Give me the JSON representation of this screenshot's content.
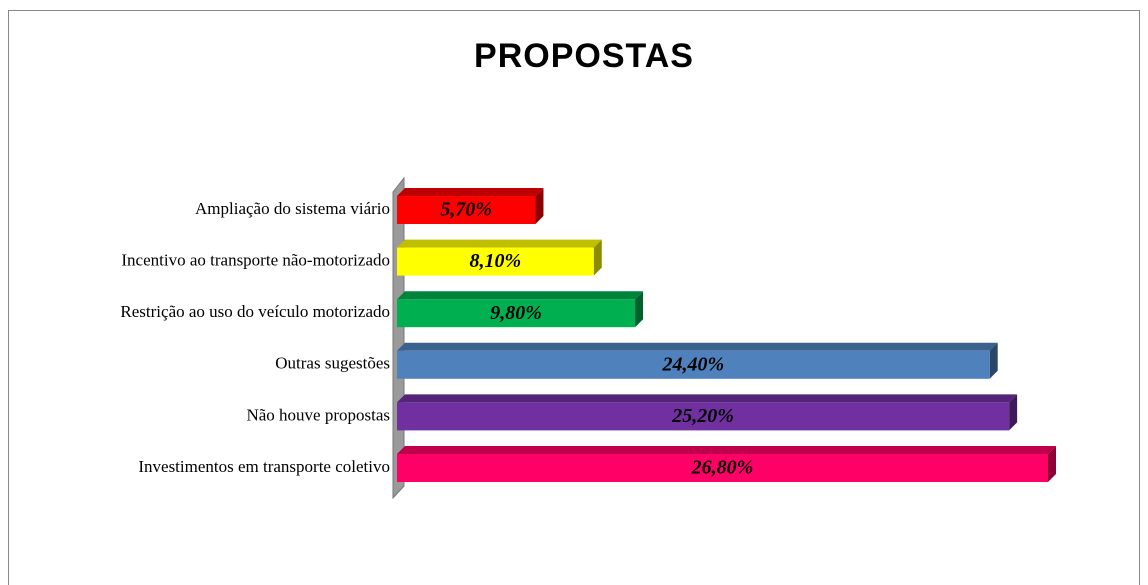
{
  "chart_data": {
    "type": "bar",
    "orientation": "horizontal",
    "title": "PROPOSTAS",
    "categories": [
      "Ampliação do sistema viário",
      "Incentivo ao transporte não-motorizado",
      "Restrição ao uso do veículo motorizado",
      "Outras sugestões",
      "Não houve propostas",
      "Investimentos em transporte coletivo"
    ],
    "values": [
      5.7,
      8.1,
      9.8,
      24.4,
      25.2,
      26.8
    ],
    "value_labels": [
      "5,70%",
      "8,10%",
      "9,80%",
      "24,40%",
      "25,20%",
      "26,80%"
    ],
    "colors": [
      "#ff0000",
      "#ffff00",
      "#00b050",
      "#4f81bd",
      "#7030a0",
      "#ff0066"
    ]
  }
}
